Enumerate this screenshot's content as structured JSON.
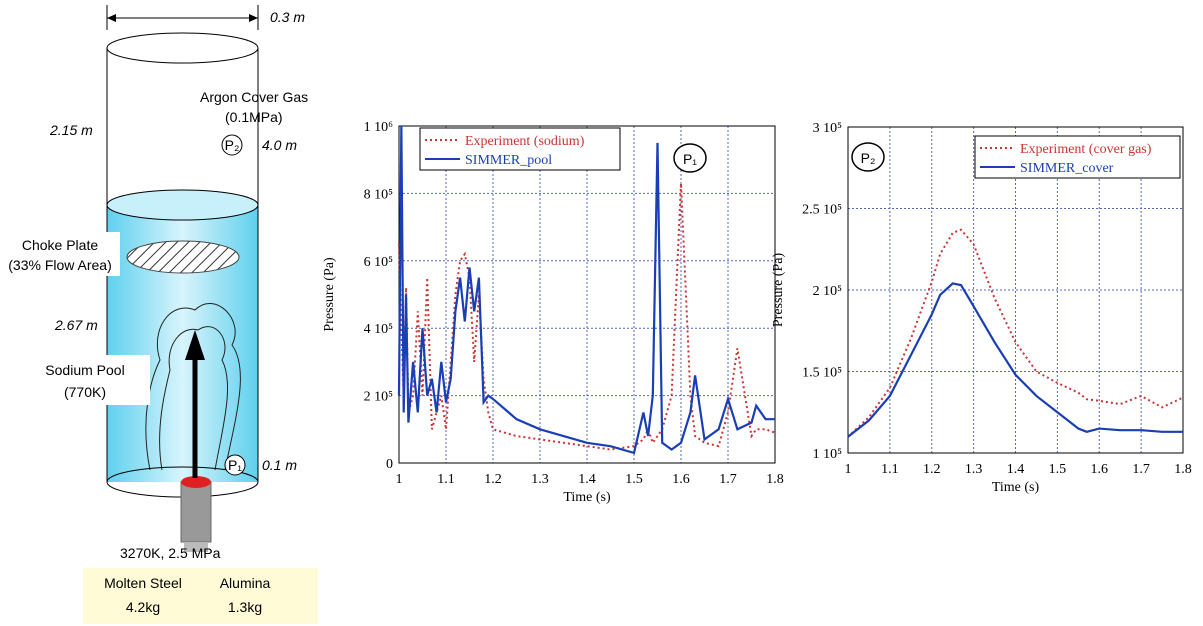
{
  "diagram": {
    "diameter": "0.3 m",
    "gas_name": "Argon Cover Gas",
    "gas_pressure": "(0.1MPa)",
    "p2_label": "P₂",
    "p2_height": "4.0 m",
    "gas_height": "2.15 m",
    "plate_name": "Choke Plate",
    "plate_area": "(33% Flow Area)",
    "pool_height": "2.67 m",
    "pool_name": "Sodium Pool",
    "pool_temp": "(770K)",
    "p1_label": "P₁",
    "p1_height": "0.1 m",
    "melt_state": "3270K, 2.5 MPa",
    "materials": [
      {
        "name": "Molten Steel",
        "mass": "4.2kg"
      },
      {
        "name": "Alumina",
        "mass": "1.3kg"
      }
    ]
  },
  "chart_data": [
    {
      "type": "line",
      "annotation": "P₁",
      "xlabel": "Time (s)",
      "ylabel": "Pressure (Pa)",
      "xlim": [
        1,
        1.8
      ],
      "xticks": [
        1,
        1.1,
        1.2,
        1.3,
        1.4,
        1.5,
        1.6,
        1.7,
        1.8
      ],
      "ylim": [
        0,
        1000000
      ],
      "yticks": [
        0,
        {
          "value": 200000,
          "label": "2 10⁵"
        },
        {
          "value": 400000,
          "label": "4 10⁵"
        },
        {
          "value": 600000,
          "label": "6 10⁵"
        },
        {
          "value": 800000,
          "label": "8 10⁵"
        },
        {
          "value": 1000000,
          "label": "1 10⁶"
        }
      ],
      "grid": true,
      "x": [
        1.0,
        1.005,
        1.01,
        1.015,
        1.02,
        1.03,
        1.04,
        1.05,
        1.06,
        1.07,
        1.08,
        1.09,
        1.1,
        1.11,
        1.12,
        1.13,
        1.14,
        1.15,
        1.16,
        1.17,
        1.18,
        1.19,
        1.2,
        1.25,
        1.3,
        1.35,
        1.4,
        1.45,
        1.5,
        1.52,
        1.53,
        1.54,
        1.55,
        1.56,
        1.58,
        1.6,
        1.62,
        1.63,
        1.65,
        1.68,
        1.7,
        1.72,
        1.75,
        1.76,
        1.78,
        1.8
      ],
      "series": [
        {
          "name": "Experiment (sodium)",
          "color": "#cc3333",
          "dash": "dotted",
          "values": [
            650000,
            400000,
            200000,
            520000,
            150000,
            200000,
            450000,
            200000,
            550000,
            100000,
            150000,
            200000,
            100000,
            300000,
            500000,
            600000,
            620000,
            550000,
            300000,
            500000,
            250000,
            150000,
            100000,
            80000,
            70000,
            60000,
            50000,
            40000,
            50000,
            70000,
            100000,
            60000,
            80000,
            100000,
            200000,
            830000,
            200000,
            80000,
            60000,
            50000,
            150000,
            340000,
            80000,
            100000,
            100000,
            90000
          ]
        },
        {
          "name": "SIMMER_pool",
          "color": "#1a3fb5",
          "dash": "solid",
          "values": [
            200000,
            1000000,
            150000,
            500000,
            120000,
            300000,
            150000,
            400000,
            200000,
            250000,
            150000,
            300000,
            180000,
            250000,
            450000,
            550000,
            420000,
            580000,
            450000,
            550000,
            180000,
            200000,
            190000,
            130000,
            100000,
            80000,
            60000,
            50000,
            30000,
            150000,
            80000,
            200000,
            950000,
            60000,
            40000,
            60000,
            150000,
            260000,
            70000,
            100000,
            190000,
            100000,
            120000,
            170000,
            130000,
            130000
          ]
        }
      ]
    },
    {
      "type": "line",
      "annotation": "P₂",
      "xlabel": "Time (s)",
      "ylabel": "Pressure (Pa)",
      "xlim": [
        1,
        1.8
      ],
      "xticks": [
        1,
        1.1,
        1.2,
        1.3,
        1.4,
        1.5,
        1.6,
        1.7,
        1.8
      ],
      "ylim": [
        100000,
        300000
      ],
      "yticks": [
        {
          "value": 100000,
          "label": "1 10⁵"
        },
        {
          "value": 150000,
          "label": "1.5 10⁵"
        },
        {
          "value": 200000,
          "label": "2 10⁵"
        },
        {
          "value": 250000,
          "label": "2.5 10⁵"
        },
        {
          "value": 300000,
          "label": "3 10⁵"
        }
      ],
      "grid": true,
      "x": [
        1.0,
        1.05,
        1.1,
        1.15,
        1.2,
        1.22,
        1.25,
        1.27,
        1.3,
        1.35,
        1.4,
        1.45,
        1.5,
        1.55,
        1.57,
        1.6,
        1.65,
        1.7,
        1.75,
        1.8
      ],
      "series": [
        {
          "name": "Experiment (cover gas)",
          "color": "#cc3333",
          "dash": "dotted",
          "values": [
            110000,
            122000,
            140000,
            170000,
            205000,
            222000,
            235000,
            237000,
            228000,
            195000,
            168000,
            150000,
            143000,
            137000,
            133000,
            132000,
            130000,
            135000,
            128000,
            134000
          ]
        },
        {
          "name": "SIMMER_cover",
          "color": "#1a3fb5",
          "dash": "solid",
          "values": [
            110000,
            120000,
            135000,
            160000,
            185000,
            197000,
            204000,
            203000,
            190000,
            168000,
            148000,
            135000,
            125000,
            115000,
            113000,
            115000,
            114000,
            114000,
            113000,
            113000
          ]
        }
      ]
    }
  ]
}
